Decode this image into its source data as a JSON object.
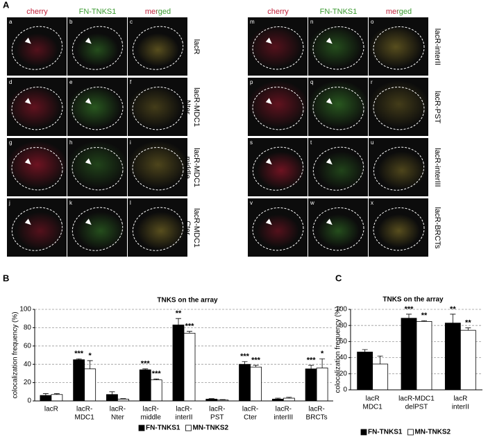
{
  "panel_a": {
    "label": "A",
    "groups": [
      {
        "columns": [
          "cherry",
          "FN-TNKS1",
          "merged"
        ],
        "rows": [
          {
            "label": [
              "lacR"
            ],
            "panels": [
              "a",
              "b",
              "c"
            ]
          },
          {
            "label": [
              "lacR-MDC1",
              "Nter"
            ],
            "panels": [
              "d",
              "e",
              "f"
            ]
          },
          {
            "label": [
              "lacR-MDC1",
              "middle"
            ],
            "panels": [
              "g",
              "h",
              "i"
            ]
          },
          {
            "label": [
              "lacR-MDC1",
              "Cter"
            ],
            "panels": [
              "j",
              "k",
              "l"
            ]
          }
        ]
      },
      {
        "columns": [
          "cherry",
          "FN-TNKS1",
          "merged"
        ],
        "rows": [
          {
            "label": [
              "lacR-interII"
            ],
            "panels": [
              "m",
              "n",
              "o"
            ]
          },
          {
            "label": [
              "lacR-PST"
            ],
            "panels": [
              "p",
              "q",
              "r"
            ]
          },
          {
            "label": [
              "lacR-interIII"
            ],
            "panels": [
              "s",
              "t",
              "u"
            ]
          },
          {
            "label": [
              "lacR-BRCTs"
            ],
            "panels": [
              "v",
              "w",
              "x"
            ]
          }
        ]
      }
    ]
  },
  "chart_data": [
    {
      "type": "bar",
      "panel_label": "B",
      "title": "TNKS on the array",
      "y_label": "colocalization frequency (%)",
      "categories": [
        [
          "lacR"
        ],
        [
          "lacR-",
          "MDC1"
        ],
        [
          "lacR-",
          "Nter"
        ],
        [
          "lacR-",
          "middle"
        ],
        [
          "lacR-",
          "interII"
        ],
        [
          "lacR-",
          "PST"
        ],
        [
          "lacR-",
          "Cter"
        ],
        [
          "lacR-",
          "interIII"
        ],
        [
          "lacR-",
          "BRCTs"
        ]
      ],
      "series": [
        {
          "name": "FN-TNKS1",
          "color": "#000000",
          "values": [
            6,
            45,
            7,
            34,
            83,
            2,
            40,
            2,
            35
          ],
          "errors": [
            2,
            1,
            3,
            1,
            7,
            0.5,
            3,
            1,
            4
          ],
          "annotations": [
            null,
            "***",
            null,
            "***",
            "**",
            null,
            "***",
            null,
            "***"
          ]
        },
        {
          "name": "MN-TNKS2",
          "color": "#ffffff",
          "values": [
            7,
            35,
            2,
            23,
            74,
            1,
            37,
            3,
            36
          ],
          "errors": [
            1,
            9,
            0.5,
            1,
            2,
            0.5,
            2,
            1,
            10
          ],
          "annotations": [
            null,
            "*",
            null,
            "***",
            "***",
            null,
            "***",
            null,
            "*"
          ]
        }
      ],
      "ylim": [
        0,
        100
      ],
      "yticks": [
        0,
        20,
        40,
        60,
        80,
        100
      ],
      "grid": true,
      "legend": "bottom"
    },
    {
      "type": "bar",
      "panel_label": "C",
      "title": "TNKS on the array",
      "y_label": "colocalization frequency (%)",
      "categories": [
        [
          "lacR",
          "MDC1"
        ],
        [
          "lacR-MDC1",
          "delPST"
        ],
        [
          "lacR",
          "interII"
        ]
      ],
      "series": [
        {
          "name": "FN-TNKS1",
          "color": "#000000",
          "values": [
            47,
            89,
            83
          ],
          "errors": [
            3,
            5,
            11
          ],
          "annotations": [
            null,
            "***",
            "**"
          ]
        },
        {
          "name": "MN-TNKS2",
          "color": "#ffffff",
          "values": [
            32,
            85,
            74
          ],
          "errors": [
            10,
            1,
            3
          ],
          "annotations": [
            null,
            "**",
            "**"
          ]
        }
      ],
      "ylim": [
        0,
        100
      ],
      "yticks": [
        0,
        20,
        40,
        60,
        80,
        100
      ],
      "grid": true,
      "legend": "bottom"
    }
  ]
}
